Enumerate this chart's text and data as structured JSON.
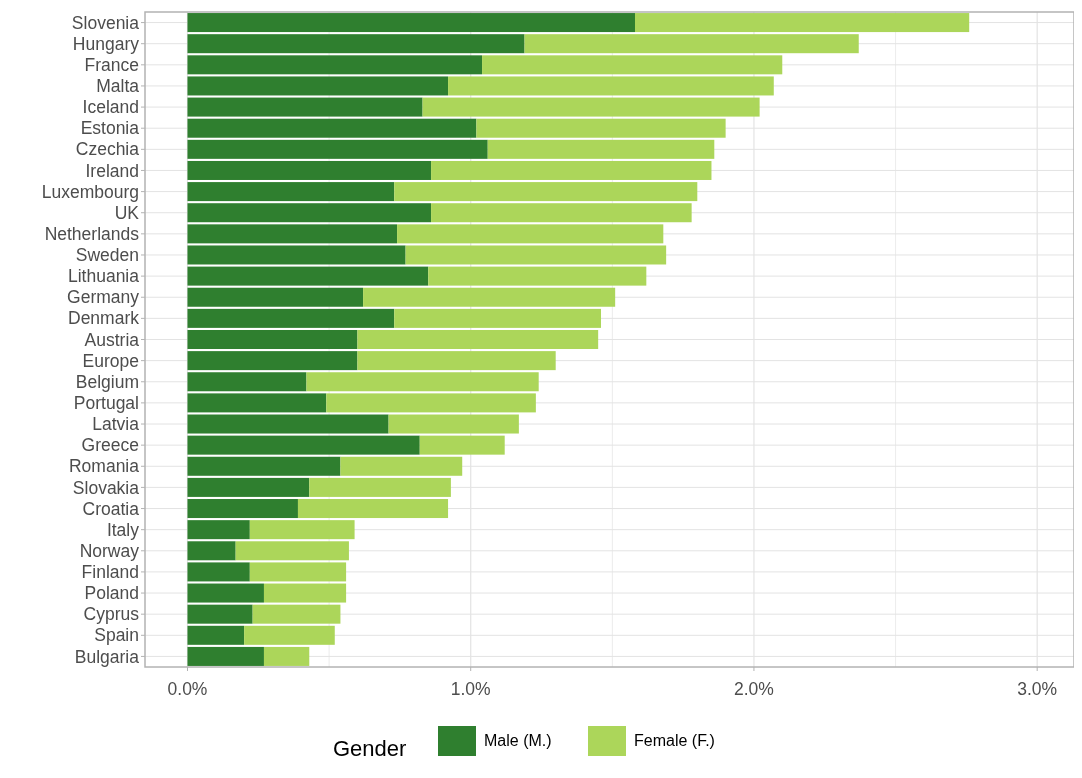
{
  "chart_data": {
    "type": "bar",
    "orientation": "horizontal",
    "stacked": true,
    "categories": [
      "Slovenia",
      "Hungary",
      "France",
      "Malta",
      "Iceland",
      "Estonia",
      "Czechia",
      "Ireland",
      "Luxembourg",
      "UK",
      "Netherlands",
      "Sweden",
      "Lithuania",
      "Germany",
      "Denmark",
      "Austria",
      "Europe",
      "Belgium",
      "Portugal",
      "Latvia",
      "Greece",
      "Romania",
      "Slovakia",
      "Croatia",
      "Italy",
      "Norway",
      "Finland",
      "Poland",
      "Cyprus",
      "Spain",
      "Bulgaria"
    ],
    "series": [
      {
        "name": "Male (M.)",
        "color": "#2f7f2f",
        "values": [
          1.58,
          1.19,
          1.04,
          0.92,
          0.83,
          1.02,
          1.06,
          0.86,
          0.73,
          0.86,
          0.74,
          0.77,
          0.85,
          0.62,
          0.73,
          0.6,
          0.6,
          0.42,
          0.49,
          0.71,
          0.82,
          0.54,
          0.43,
          0.39,
          0.22,
          0.17,
          0.22,
          0.27,
          0.23,
          0.2,
          0.27
        ]
      },
      {
        "name": "Female (F.)",
        "color": "#acd65a",
        "values": [
          1.18,
          1.18,
          1.06,
          1.15,
          1.19,
          0.88,
          0.8,
          0.99,
          1.07,
          0.92,
          0.94,
          0.92,
          0.77,
          0.89,
          0.73,
          0.85,
          0.7,
          0.82,
          0.74,
          0.46,
          0.3,
          0.43,
          0.5,
          0.53,
          0.37,
          0.4,
          0.34,
          0.29,
          0.31,
          0.32,
          0.16
        ]
      }
    ],
    "xlim": [
      -0.15,
      3.13
    ],
    "xticks": [
      {
        "value": 0,
        "label": "0.0%"
      },
      {
        "value": 0.5,
        "label": null
      },
      {
        "value": 1,
        "label": "1.0%"
      },
      {
        "value": 1.5,
        "label": null
      },
      {
        "value": 2,
        "label": "2.0%"
      },
      {
        "value": 2.5,
        "label": null
      },
      {
        "value": 3,
        "label": "3.0%"
      }
    ],
    "grid": true,
    "legend": "bottom",
    "legend_title": "Gender"
  }
}
